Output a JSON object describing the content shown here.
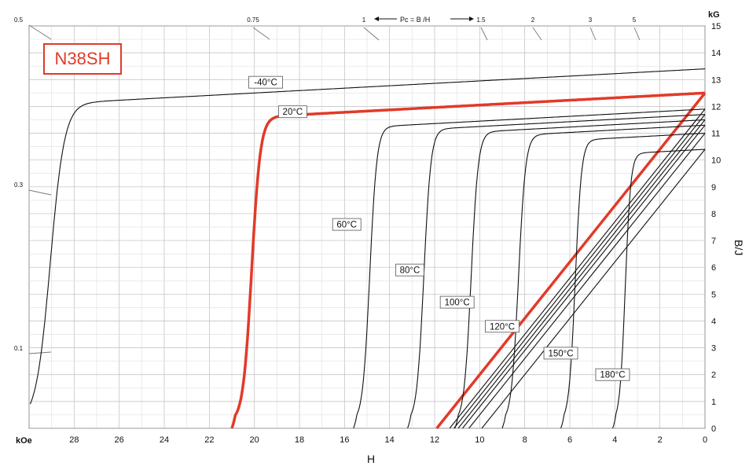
{
  "product": {
    "label": "N38SH"
  },
  "chart_data": {
    "type": "line",
    "xlabel": "H",
    "ylabel": "B/J",
    "x_unit": "kOe",
    "y_unit": "kG",
    "xlim": [
      30,
      0
    ],
    "ylim": [
      0,
      15
    ],
    "x_ticks": [
      28,
      26,
      24,
      22,
      20,
      18,
      16,
      14,
      12,
      10,
      8,
      6,
      4,
      2,
      0
    ],
    "y_ticks": [
      0,
      1,
      2,
      3,
      4,
      5,
      6,
      7,
      8,
      9,
      10,
      11,
      12,
      13,
      14,
      15
    ],
    "pc_header": {
      "text": "Pc = B /H",
      "values": [
        "1",
        "1.5",
        "2",
        "3",
        "5"
      ],
      "extra": "0.75"
    },
    "pc_left": [
      "0.5",
      "0.3",
      "0.1"
    ],
    "highlight_color": "#e23a2a",
    "grid": true,
    "series": [
      {
        "name": "-40°C",
        "Br": 13.4,
        "Hcj": 30.5,
        "sq": 0.9,
        "label_x": 19.5,
        "highlight": false
      },
      {
        "name": "20°C",
        "Br": 12.5,
        "Hcj": 21.0,
        "sq": 0.55,
        "label_x": 18.3,
        "highlight": true
      },
      {
        "name": "60°C",
        "Br": 11.9,
        "Hcj": 15.6,
        "sq": 0.45,
        "label_x": 15.9,
        "highlight": false
      },
      {
        "name": "80°C",
        "Br": 11.7,
        "Hcj": 13.2,
        "sq": 0.45,
        "label_x": 13.1,
        "highlight": false
      },
      {
        "name": "100°C",
        "Br": 11.5,
        "Hcj": 11.1,
        "sq": 0.45,
        "label_x": 11.0,
        "highlight": false
      },
      {
        "name": "120°C",
        "Br": 11.3,
        "Hcj": 9.0,
        "sq": 0.45,
        "label_x": 9.0,
        "highlight": false
      },
      {
        "name": "150°C",
        "Br": 11.0,
        "Hcj": 6.4,
        "sq": 0.4,
        "label_x": 6.4,
        "highlight": false
      },
      {
        "name": "180°C",
        "Br": 10.4,
        "Hcj": 4.1,
        "sq": 0.35,
        "label_x": 4.1,
        "highlight": false
      }
    ],
    "label_y": {
      "-40°C": 12.9,
      "20°C": 11.8,
      "60°C": 7.6,
      "80°C": 5.9,
      "100°C": 4.7,
      "120°C": 3.8,
      "150°C": 2.8,
      "180°C": 2.0
    }
  }
}
